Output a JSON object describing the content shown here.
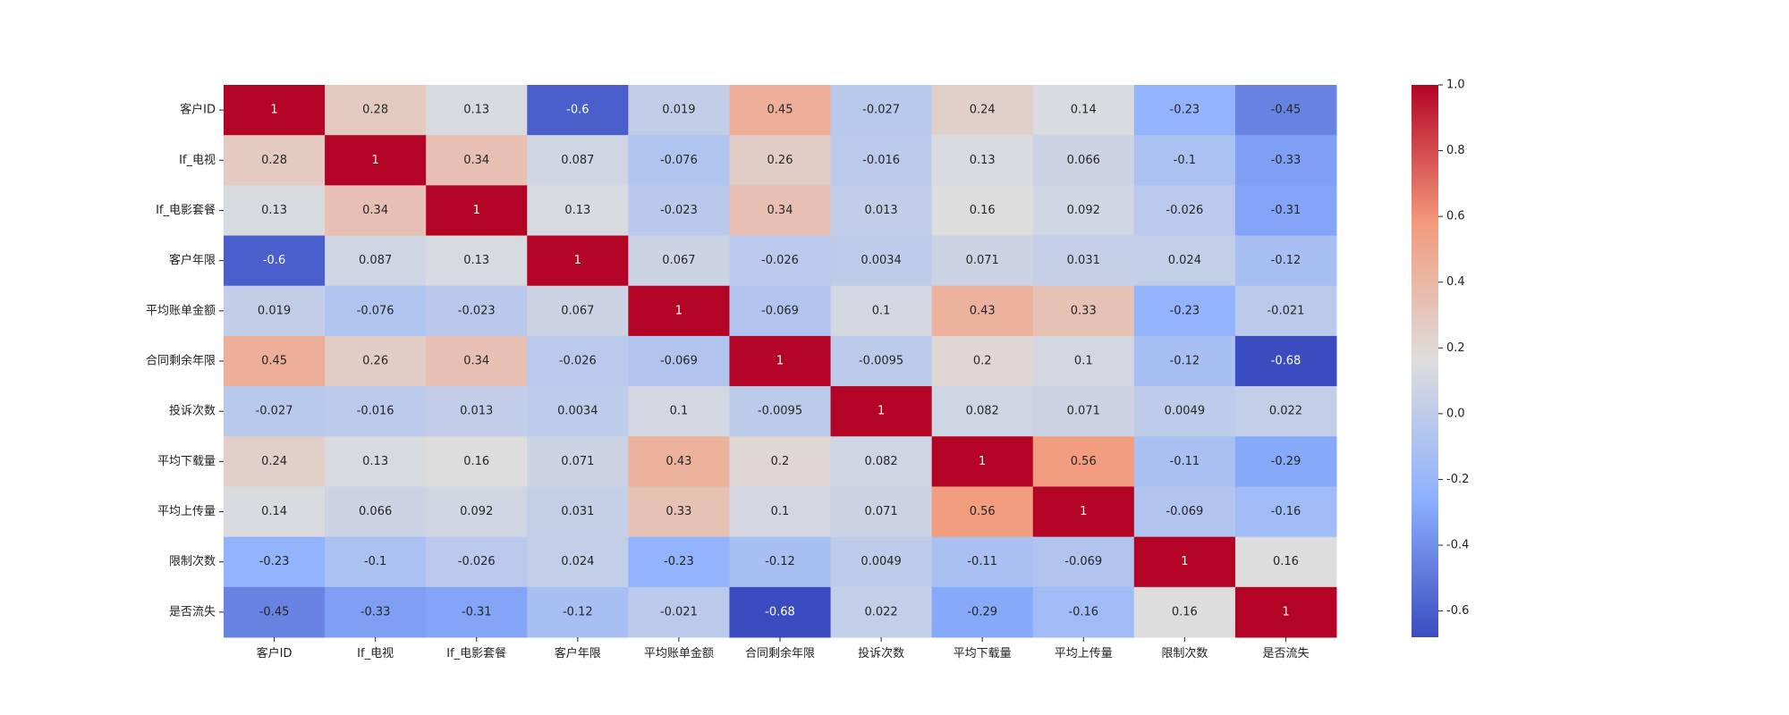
{
  "chart_data": {
    "type": "heatmap",
    "title": "",
    "xlabel": "",
    "ylabel": "",
    "colormap": "coolwarm",
    "colors": {
      "low": "#3b4cc0",
      "mid": "#dddddd",
      "high": "#b40426"
    },
    "vmin": -0.68,
    "vmax": 1.0,
    "x_labels": [
      "客户ID",
      "If_电视",
      "If_电影套餐",
      "客户年限",
      "平均账单金额",
      "合同剩余年限",
      "投诉次数",
      "平均下载量",
      "平均上传量",
      "限制次数",
      "是否流失"
    ],
    "y_labels": [
      "客户ID",
      "If_电视",
      "If_电影套餐",
      "客户年限",
      "平均账单金额",
      "合同剩余年限",
      "投诉次数",
      "平均下载量",
      "平均上传量",
      "限制次数",
      "是否流失"
    ],
    "values": [
      [
        1,
        0.28,
        0.13,
        -0.6,
        0.019,
        0.45,
        -0.027,
        0.24,
        0.14,
        -0.23,
        -0.45
      ],
      [
        0.28,
        1,
        0.34,
        0.087,
        -0.076,
        0.26,
        -0.016,
        0.13,
        0.066,
        -0.1,
        -0.33
      ],
      [
        0.13,
        0.34,
        1,
        0.13,
        -0.023,
        0.34,
        0.013,
        0.16,
        0.092,
        -0.026,
        -0.31
      ],
      [
        -0.6,
        0.087,
        0.13,
        1,
        0.067,
        -0.026,
        0.0034,
        0.071,
        0.031,
        0.024,
        -0.12
      ],
      [
        0.019,
        -0.076,
        -0.023,
        0.067,
        1,
        -0.069,
        0.1,
        0.43,
        0.33,
        -0.23,
        -0.021
      ],
      [
        0.45,
        0.26,
        0.34,
        -0.026,
        -0.069,
        1,
        -0.0095,
        0.2,
        0.1,
        -0.12,
        -0.68
      ],
      [
        -0.027,
        -0.016,
        0.013,
        0.0034,
        0.1,
        -0.0095,
        1,
        0.082,
        0.071,
        0.0049,
        0.022
      ],
      [
        0.24,
        0.13,
        0.16,
        0.071,
        0.43,
        0.2,
        0.082,
        1,
        0.56,
        -0.11,
        -0.29
      ],
      [
        0.14,
        0.066,
        0.092,
        0.031,
        0.33,
        0.1,
        0.071,
        0.56,
        1,
        -0.069,
        -0.16
      ],
      [
        -0.23,
        -0.1,
        -0.026,
        0.024,
        -0.23,
        -0.12,
        0.0049,
        -0.11,
        -0.069,
        1,
        0.16
      ],
      [
        -0.45,
        -0.33,
        -0.31,
        -0.12,
        -0.021,
        -0.68,
        0.022,
        -0.29,
        -0.16,
        0.16,
        1
      ]
    ],
    "cell_labels": [
      [
        "1",
        "0.28",
        "0.13",
        "-0.6",
        "0.019",
        "0.45",
        "-0.027",
        "0.24",
        "0.14",
        "-0.23",
        "-0.45"
      ],
      [
        "0.28",
        "1",
        "0.34",
        "0.087",
        "-0.076",
        "0.26",
        "-0.016",
        "0.13",
        "0.066",
        "-0.1",
        "-0.33"
      ],
      [
        "0.13",
        "0.34",
        "1",
        "0.13",
        "-0.023",
        "0.34",
        "0.013",
        "0.16",
        "0.092",
        "-0.026",
        "-0.31"
      ],
      [
        "-0.6",
        "0.087",
        "0.13",
        "1",
        "0.067",
        "-0.026",
        "0.0034",
        "0.071",
        "0.031",
        "0.024",
        "-0.12"
      ],
      [
        "0.019",
        "-0.076",
        "-0.023",
        "0.067",
        "1",
        "-0.069",
        "0.1",
        "0.43",
        "0.33",
        "-0.23",
        "-0.021"
      ],
      [
        "0.45",
        "0.26",
        "0.34",
        "-0.026",
        "-0.069",
        "1",
        "-0.0095",
        "0.2",
        "0.1",
        "-0.12",
        "-0.68"
      ],
      [
        "-0.027",
        "-0.016",
        "0.013",
        "0.0034",
        "0.1",
        "-0.0095",
        "1",
        "0.082",
        "0.071",
        "0.0049",
        "0.022"
      ],
      [
        "0.24",
        "0.13",
        "0.16",
        "0.071",
        "0.43",
        "0.2",
        "0.082",
        "1",
        "0.56",
        "-0.11",
        "-0.29"
      ],
      [
        "0.14",
        "0.066",
        "0.092",
        "0.031",
        "0.33",
        "0.1",
        "0.071",
        "0.56",
        "1",
        "-0.069",
        "-0.16"
      ],
      [
        "-0.23",
        "-0.1",
        "-0.026",
        "0.024",
        "-0.23",
        "-0.12",
        "0.0049",
        "-0.11",
        "-0.069",
        "1",
        "0.16"
      ],
      [
        "-0.45",
        "-0.33",
        "-0.31",
        "-0.12",
        "-0.021",
        "-0.68",
        "0.022",
        "-0.29",
        "-0.16",
        "0.16",
        "1"
      ]
    ],
    "colorbar": {
      "range": [
        -0.68,
        1.0
      ],
      "ticks": [
        1.0,
        0.8,
        0.6,
        0.4,
        0.2,
        0.0,
        -0.2,
        -0.4,
        -0.6
      ],
      "tick_labels": [
        "1.0",
        "0.8",
        "0.6",
        "0.4",
        "0.2",
        "0.0",
        "-0.2",
        "-0.4",
        "-0.6"
      ]
    },
    "grid": false,
    "legend": "colorbar-right"
  }
}
